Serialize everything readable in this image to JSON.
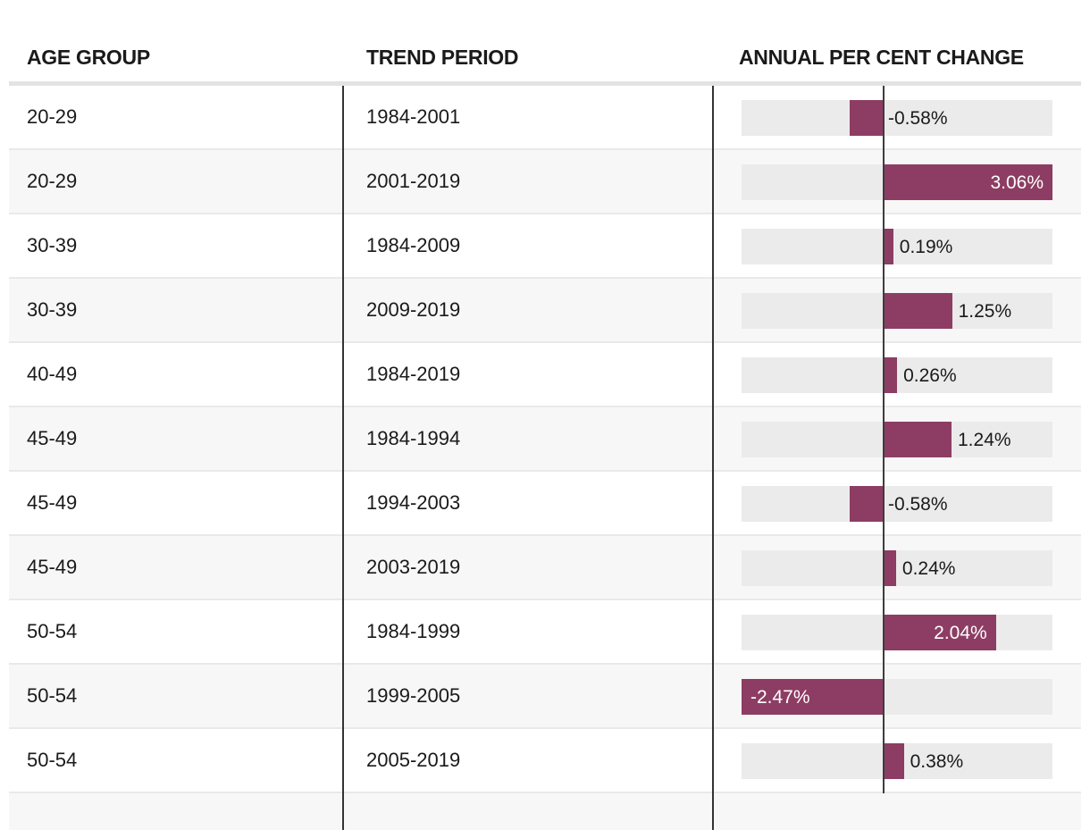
{
  "header": {
    "columns": [
      "AGE GROUP",
      "TREND PERIOD",
      "ANNUAL PER CENT CHANGE"
    ]
  },
  "colors": {
    "bar": "#8d3d63",
    "bar_track": "#ebebeb",
    "alt_row_background": "#f7f7f7",
    "row_border": "#e9e9e9",
    "axis_line": "#3d3d3d",
    "column_divider": "#333333"
  },
  "chart_data": {
    "type": "bar",
    "orientation": "horizontal",
    "title": "",
    "xlabel": "ANNUAL PER CENT CHANGE",
    "x_range": [
      -2.47,
      3.06
    ],
    "zero_line": true,
    "grid": false,
    "legend": false,
    "columns": [
      "AGE GROUP",
      "TREND PERIOD",
      "ANNUAL PER CENT CHANGE"
    ],
    "rows": [
      {
        "age_group": "20-29",
        "trend_period": "1984-2001",
        "value": -0.58,
        "label": "-0.58%"
      },
      {
        "age_group": "20-29",
        "trend_period": "2001-2019",
        "value": 3.06,
        "label": "3.06%"
      },
      {
        "age_group": "30-39",
        "trend_period": "1984-2009",
        "value": 0.19,
        "label": "0.19%"
      },
      {
        "age_group": "30-39",
        "trend_period": "2009-2019",
        "value": 1.25,
        "label": "1.25%"
      },
      {
        "age_group": "40-49",
        "trend_period": "1984-2019",
        "value": 0.26,
        "label": "0.26%"
      },
      {
        "age_group": "45-49",
        "trend_period": "1984-1994",
        "value": 1.24,
        "label": "1.24%"
      },
      {
        "age_group": "45-49",
        "trend_period": "1994-2003",
        "value": -0.58,
        "label": "-0.58%"
      },
      {
        "age_group": "45-49",
        "trend_period": "2003-2019",
        "value": 0.24,
        "label": "0.24%"
      },
      {
        "age_group": "50-54",
        "trend_period": "1984-1999",
        "value": 2.04,
        "label": "2.04%"
      },
      {
        "age_group": "50-54",
        "trend_period": "1999-2005",
        "value": -2.47,
        "label": "-2.47%"
      },
      {
        "age_group": "50-54",
        "trend_period": "2005-2019",
        "value": 0.38,
        "label": "0.38%"
      }
    ]
  }
}
